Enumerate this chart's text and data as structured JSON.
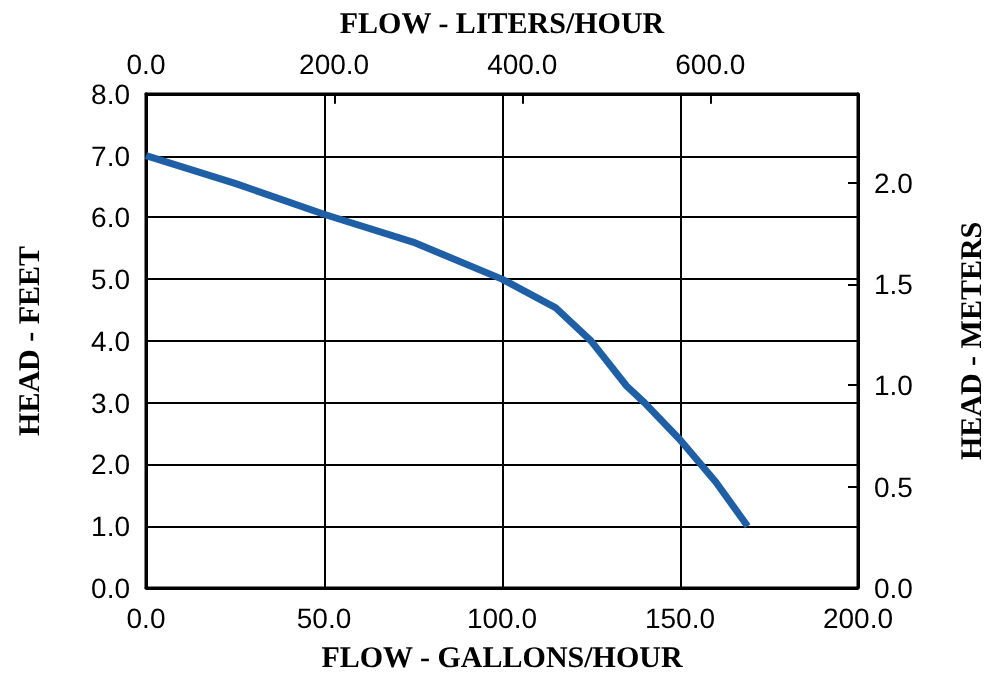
{
  "chart_data": {
    "type": "line",
    "xlabel": "FLOW - GALLONS/HOUR",
    "x2label": "FLOW - LITERS/HOUR",
    "ylabel": "HEAD - FEET",
    "y2label": "HEAD - METERS",
    "x": [
      0,
      25,
      50,
      75,
      100,
      115,
      125,
      135,
      140,
      150,
      160,
      169
    ],
    "series": [
      {
        "color": "#1f5fa6",
        "values": [
          7.0,
          6.55,
          6.05,
          5.6,
          5.0,
          4.54,
          4.0,
          3.27,
          3.0,
          2.4,
          1.72,
          1.0
        ]
      }
    ],
    "xlim": [
      0,
      200
    ],
    "xticks": [
      {
        "value": 0,
        "label": "0.0"
      },
      {
        "value": 50,
        "label": "50.0"
      },
      {
        "value": 100,
        "label": "100.0"
      },
      {
        "value": 150,
        "label": "150.0"
      },
      {
        "value": 200,
        "label": "200.0"
      }
    ],
    "x2lim": [
      0,
      757.08
    ],
    "x2ticks": [
      {
        "value": 0,
        "label": "0.0"
      },
      {
        "value": 200,
        "label": "200.0"
      },
      {
        "value": 400,
        "label": "400.0"
      },
      {
        "value": 600,
        "label": "600.0"
      }
    ],
    "ylim": [
      0,
      8
    ],
    "yticks": [
      {
        "value": 0,
        "label": "0.0"
      },
      {
        "value": 1,
        "label": "1.0"
      },
      {
        "value": 2,
        "label": "2.0"
      },
      {
        "value": 3,
        "label": "3.0"
      },
      {
        "value": 4,
        "label": "4.0"
      },
      {
        "value": 5,
        "label": "5.0"
      },
      {
        "value": 6,
        "label": "6.0"
      },
      {
        "value": 7,
        "label": "7.0"
      },
      {
        "value": 8,
        "label": "8.0"
      }
    ],
    "y2lim": [
      0,
      2.4384
    ],
    "y2ticks": [
      {
        "value": 0,
        "label": "0.0"
      },
      {
        "value": 0.5,
        "label": "0.5"
      },
      {
        "value": 1,
        "label": "1.0"
      },
      {
        "value": 1.5,
        "label": "1.5"
      },
      {
        "value": 2,
        "label": "2.0"
      }
    ],
    "grid": true,
    "marker": "none",
    "line_style": "solid"
  }
}
